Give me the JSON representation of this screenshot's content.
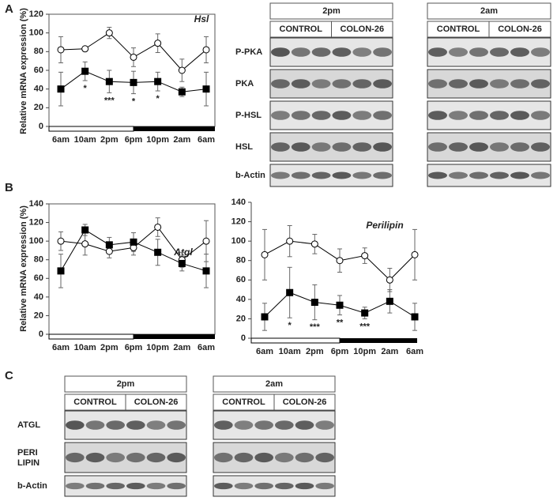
{
  "panel_labels": [
    "A",
    "B",
    "C"
  ],
  "chart_data": [
    {
      "type": "line",
      "title": "Hsl",
      "y_label": "Relative mRNA expression (%)",
      "categories": [
        "6am",
        "10am",
        "2pm",
        "6pm",
        "10pm",
        "2am",
        "6am"
      ],
      "ylim": [
        0,
        120
      ],
      "yticks": [
        0,
        20,
        40,
        60,
        80,
        100,
        120
      ],
      "series": [
        {
          "color": "#000000",
          "marker": "circle",
          "marker_fill": "#ffffff",
          "values": [
            82,
            83,
            100,
            74,
            89,
            60,
            82
          ],
          "errors": [
            14,
            2,
            6,
            10,
            10,
            12,
            14
          ]
        },
        {
          "color": "#000000",
          "marker": "square",
          "marker_fill": "#000000",
          "values": [
            40,
            59,
            48,
            47,
            48,
            37,
            40
          ],
          "errors": [
            18,
            10,
            12,
            12,
            10,
            5,
            18
          ]
        }
      ],
      "significance": [
        null,
        "*",
        "***",
        "*",
        "*",
        null,
        null
      ]
    },
    {
      "type": "line",
      "title": "Atgl",
      "y_label": "Relative mRNA expression (%)",
      "categories": [
        "6am",
        "10am",
        "2pm",
        "6pm",
        "10pm",
        "2am",
        "6am"
      ],
      "ylim": [
        0,
        140
      ],
      "yticks": [
        0,
        20,
        40,
        60,
        80,
        100,
        120,
        140
      ],
      "series": [
        {
          "color": "#000000",
          "marker": "circle",
          "marker_fill": "#ffffff",
          "values": [
            100,
            97,
            89,
            93,
            115,
            80,
            100
          ],
          "errors": [
            10,
            12,
            7,
            8,
            10,
            8,
            22
          ]
        },
        {
          "color": "#000000",
          "marker": "square",
          "marker_fill": "#000000",
          "values": [
            68,
            112,
            96,
            99,
            88,
            76,
            68
          ],
          "errors": [
            18,
            6,
            8,
            10,
            14,
            8,
            18
          ]
        }
      ]
    },
    {
      "type": "line",
      "title": "Perilipin",
      "categories": [
        "6am",
        "10am",
        "2pm",
        "6pm",
        "10pm",
        "2am",
        "6am"
      ],
      "ylim": [
        0,
        140
      ],
      "yticks": [
        0,
        20,
        40,
        60,
        80,
        100,
        120,
        140
      ],
      "series": [
        {
          "color": "#000000",
          "marker": "circle",
          "marker_fill": "#ffffff",
          "values": [
            86,
            100,
            97,
            80,
            85,
            60,
            86
          ],
          "errors": [
            26,
            16,
            10,
            12,
            8,
            12,
            26
          ]
        },
        {
          "color": "#000000",
          "marker": "square",
          "marker_fill": "#000000",
          "values": [
            22,
            47,
            37,
            34,
            26,
            38,
            22
          ],
          "errors": [
            14,
            26,
            18,
            10,
            6,
            12,
            14
          ]
        }
      ],
      "significance": [
        null,
        "*",
        "***",
        "**",
        "***",
        null,
        null
      ]
    }
  ],
  "blots_top": {
    "groups": [
      {
        "time": "2pm",
        "conditions": [
          "CONTROL",
          "COLON-26"
        ]
      },
      {
        "time": "2am",
        "conditions": [
          "CONTROL",
          "COLON-26"
        ]
      }
    ],
    "rows": [
      "P-PKA",
      "PKA",
      "P-HSL",
      "HSL",
      "b-Actin"
    ]
  },
  "blots_bottom": {
    "groups": [
      {
        "time": "2pm",
        "conditions": [
          "CONTROL",
          "COLON-26"
        ]
      },
      {
        "time": "2am",
        "conditions": [
          "CONTROL",
          "COLON-26"
        ]
      }
    ],
    "rows": [
      "ATGL",
      "PERI\nLIPIN",
      "b-Actin"
    ]
  }
}
